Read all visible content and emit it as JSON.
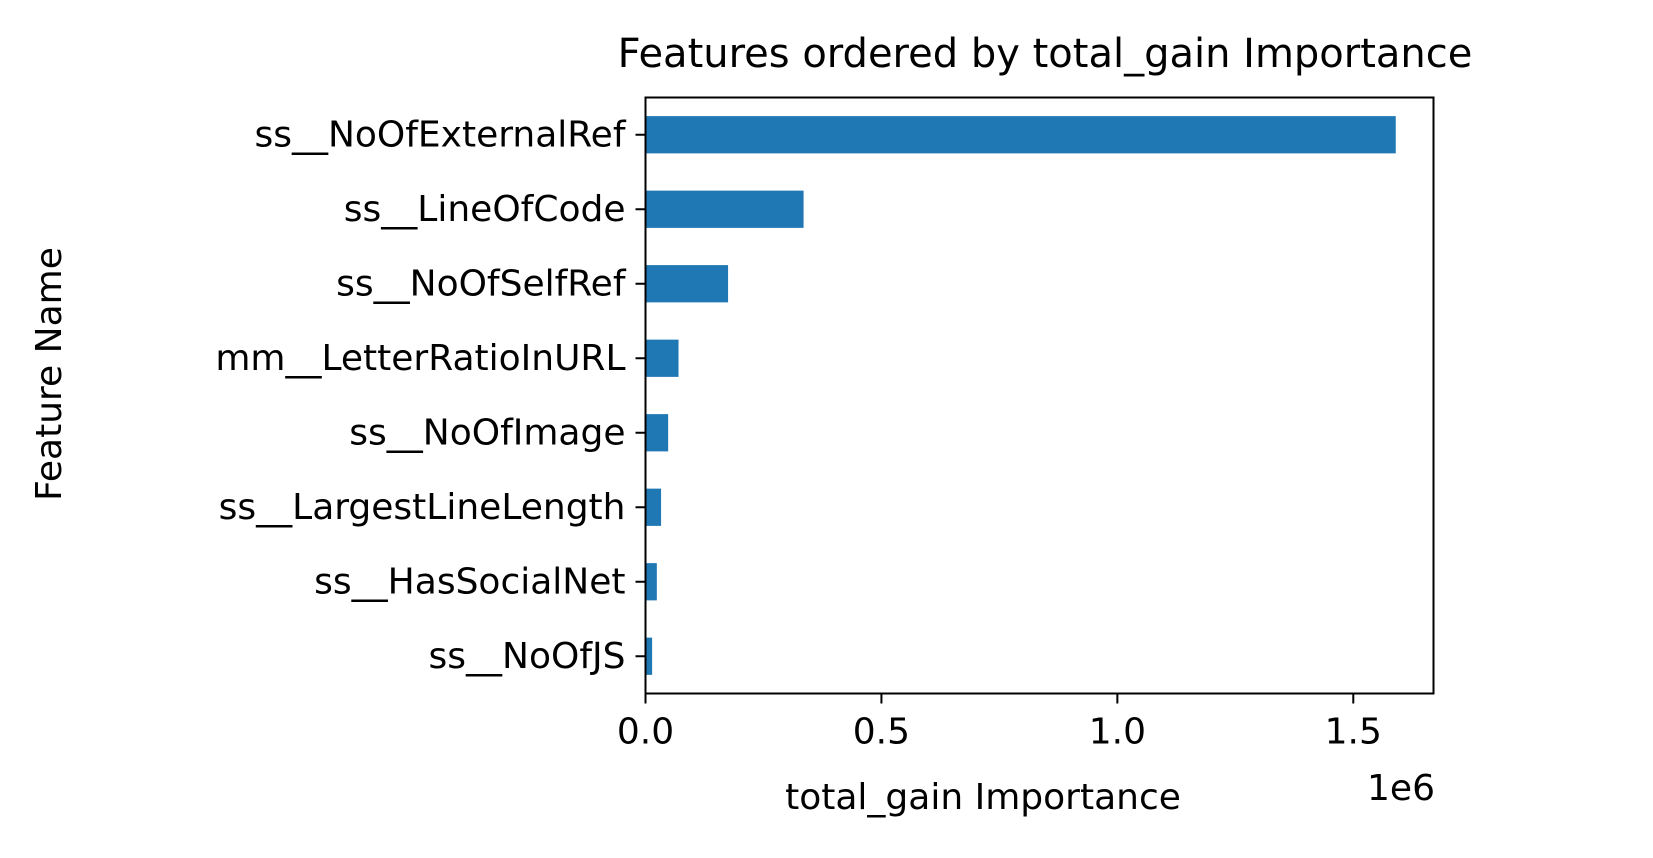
{
  "chart_data": {
    "type": "bar",
    "orientation": "horizontal",
    "title": "Features ordered by total_gain Importance",
    "xlabel": "total_gain Importance",
    "ylabel": "Feature Name",
    "x_offset_label": "1e6",
    "xlim": [
      0,
      1670000
    ],
    "x_ticks": [
      0,
      500000,
      1000000,
      1500000
    ],
    "x_tick_labels": [
      "0.0",
      "0.5",
      "1.0",
      "1.5"
    ],
    "categories": [
      "ss__NoOfExternalRef",
      "ss__LineOfCode",
      "ss__NoOfSelfRef",
      "mm__LetterRatioInURL",
      "ss__NoOfImage",
      "ss__LargestLineLength",
      "ss__HasSocialNet",
      "ss__NoOfJS"
    ],
    "values": [
      1590000,
      335000,
      175000,
      70000,
      48000,
      33000,
      24000,
      14000
    ],
    "bar_color": "#1f77b4",
    "grid": false,
    "legend": "none"
  }
}
